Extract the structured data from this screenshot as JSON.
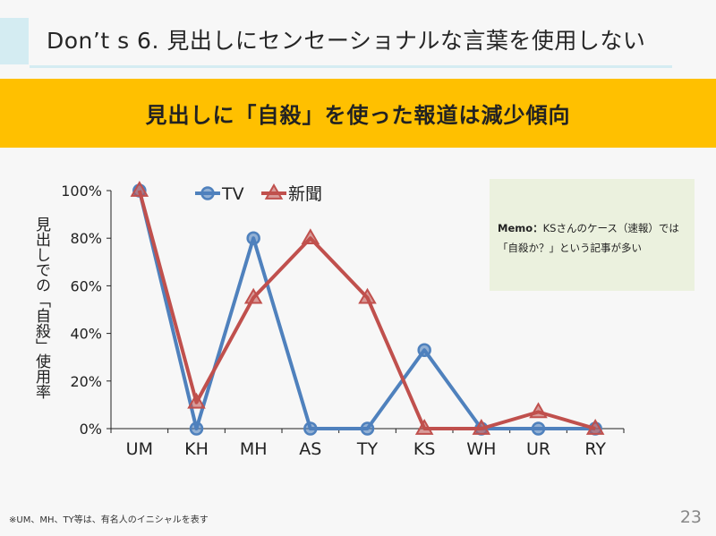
{
  "slide": {
    "title": "Don’t s  6.  見出しにセンセーショナルな言葉を使用しない",
    "subtitle": "見出しに「自殺」を使った報道は減少傾向",
    "memo_label": "Memo：",
    "memo_text": "KSさんのケース（速報）では「自殺か？」という記事が多い",
    "footnote": "※UM、MH、TY等は、有名人のイニシャルを表す",
    "page_number": "23"
  },
  "chart_data": {
    "type": "line",
    "categories": [
      "UM",
      "KH",
      "MH",
      "AS",
      "TY",
      "KS",
      "WH",
      "UR",
      "RY"
    ],
    "series": [
      {
        "name": "TV",
        "values": [
          100,
          0,
          80,
          0,
          0,
          33,
          0,
          0,
          0
        ],
        "color": "#4f81bd",
        "marker": "circle"
      },
      {
        "name": "新聞",
        "values": [
          100,
          11,
          55,
          80,
          55,
          0,
          0,
          7,
          0
        ],
        "color": "#c0504d",
        "marker": "triangle"
      }
    ],
    "ylabel": "見出しでの「自殺」使用率",
    "yticks": [
      "0%",
      "20%",
      "40%",
      "60%",
      "80%",
      "100%"
    ],
    "ylim": [
      0,
      100
    ],
    "legend_position": "top"
  }
}
